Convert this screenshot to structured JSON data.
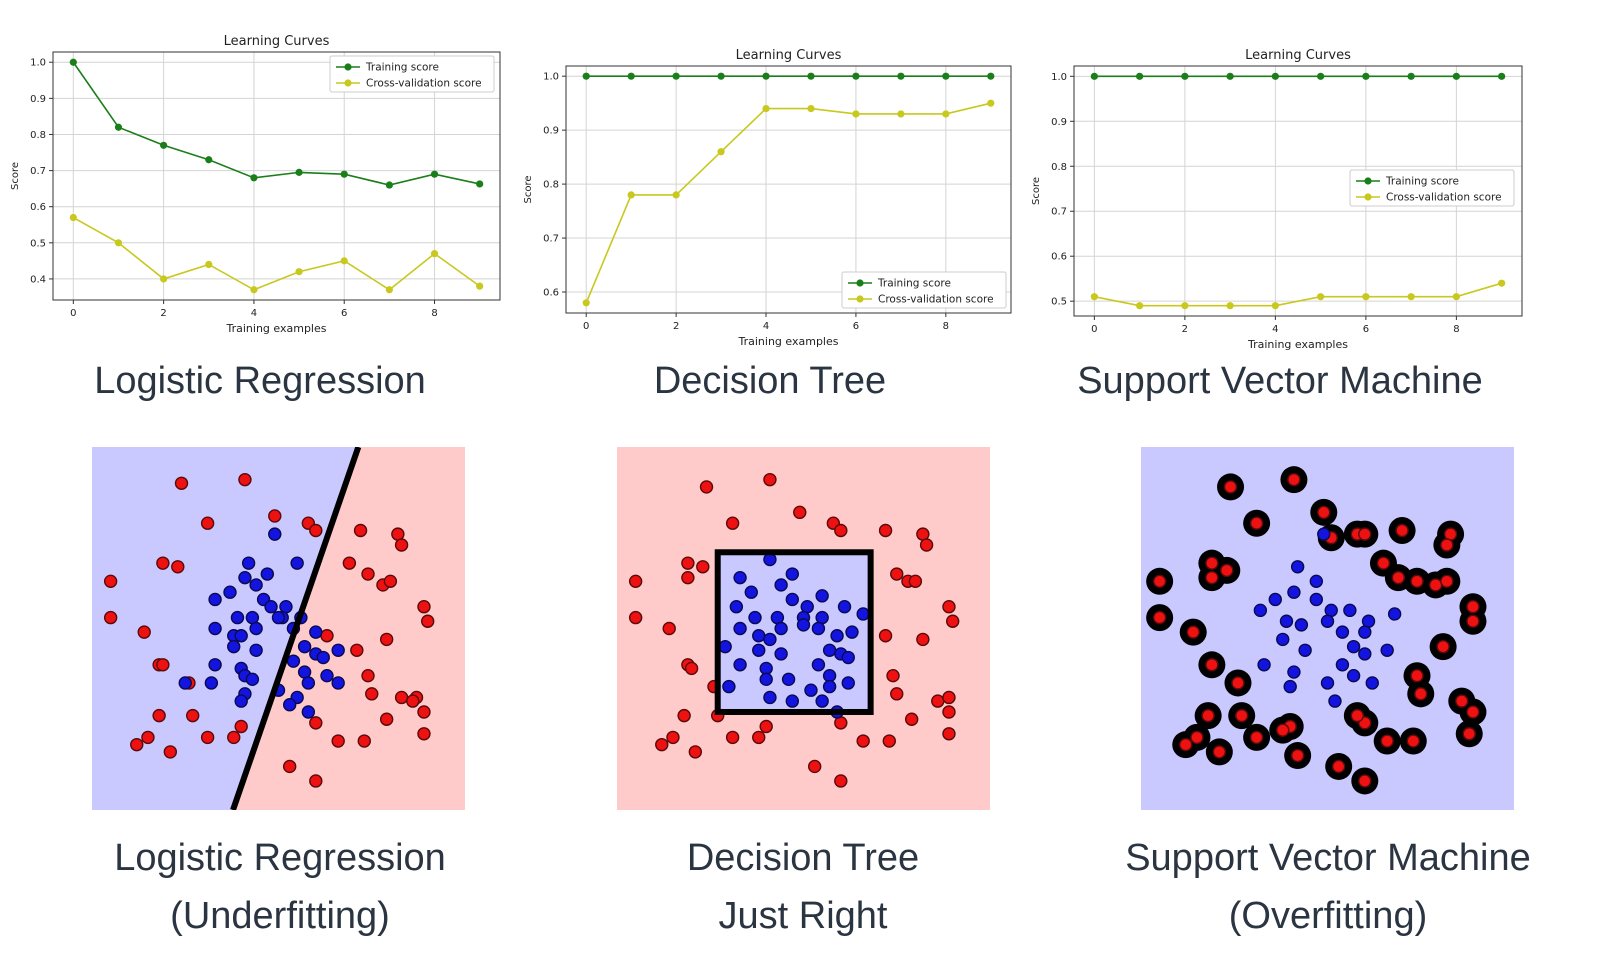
{
  "chart_data": [
    {
      "type": "line",
      "title": "Learning Curves",
      "xlabel": "Training examples",
      "ylabel": "Score",
      "x": [
        0,
        1,
        2,
        3,
        4,
        5,
        6,
        7,
        8,
        9
      ],
      "xticks": [
        "0",
        "2",
        "4",
        "6",
        "8"
      ],
      "yticks": [
        "0.4",
        "0.5",
        "0.6",
        "0.7",
        "0.8",
        "0.9",
        "1.0"
      ],
      "ylim": [
        0.37,
        1.0
      ],
      "grid": true,
      "legend": "top-right",
      "series": [
        {
          "name": "Training score",
          "color": "#1a7f1a",
          "values": [
            1.0,
            0.82,
            0.77,
            0.73,
            0.68,
            0.695,
            0.69,
            0.66,
            0.69,
            0.663
          ]
        },
        {
          "name": "Cross-validation score",
          "color": "#c8c81e",
          "values": [
            0.57,
            0.5,
            0.4,
            0.44,
            0.37,
            0.42,
            0.45,
            0.37,
            0.47,
            0.38
          ]
        }
      ]
    },
    {
      "type": "line",
      "title": "Learning Curves",
      "xlabel": "Training examples",
      "ylabel": "Score",
      "x": [
        0,
        1,
        2,
        3,
        4,
        5,
        6,
        7,
        8,
        9
      ],
      "xticks": [
        "0",
        "2",
        "4",
        "6",
        "8"
      ],
      "yticks": [
        "0.6",
        "0.7",
        "0.8",
        "0.9",
        "1.0"
      ],
      "ylim": [
        0.58,
        1.0
      ],
      "grid": true,
      "legend": "bottom-right",
      "series": [
        {
          "name": "Training score",
          "color": "#1a7f1a",
          "values": [
            1,
            1,
            1,
            1,
            1,
            1,
            1,
            1,
            1,
            1
          ]
        },
        {
          "name": "Cross-validation score",
          "color": "#c8c81e",
          "values": [
            0.58,
            0.78,
            0.78,
            0.86,
            0.94,
            0.94,
            0.93,
            0.93,
            0.93,
            0.95
          ]
        }
      ]
    },
    {
      "type": "line",
      "title": "Learning Curves",
      "xlabel": "Training examples",
      "ylabel": "Score",
      "x": [
        0,
        1,
        2,
        3,
        4,
        5,
        6,
        7,
        8,
        9
      ],
      "xticks": [
        "0",
        "2",
        "4",
        "6",
        "8"
      ],
      "yticks": [
        "0.5",
        "0.6",
        "0.7",
        "0.8",
        "0.9",
        "1.0"
      ],
      "ylim": [
        0.49,
        1.0
      ],
      "grid": true,
      "legend": "center-right",
      "series": [
        {
          "name": "Training score",
          "color": "#1a7f1a",
          "values": [
            1,
            1,
            1,
            1,
            1,
            1,
            1,
            1,
            1,
            1
          ]
        },
        {
          "name": "Cross-validation score",
          "color": "#c8c81e",
          "values": [
            0.51,
            0.49,
            0.49,
            0.49,
            0.49,
            0.51,
            0.51,
            0.51,
            0.51,
            0.54
          ]
        }
      ]
    },
    {
      "type": "scatter",
      "boundary": "linear",
      "boundary_line": [
        [
          0.378,
          0.0
        ],
        [
          0.714,
          1.0
        ]
      ],
      "region_colors": {
        "left": "#c9c9ff",
        "right": "#ffcaca"
      },
      "points_red": [
        [
          0.24,
          0.1
        ],
        [
          0.41,
          0.09
        ],
        [
          0.31,
          0.21
        ],
        [
          0.49,
          0.19
        ],
        [
          0.58,
          0.21
        ],
        [
          0.6,
          0.23
        ],
        [
          0.72,
          0.23
        ],
        [
          0.82,
          0.24
        ],
        [
          0.83,
          0.27
        ],
        [
          0.19,
          0.32
        ],
        [
          0.23,
          0.33
        ],
        [
          0.05,
          0.37
        ],
        [
          0.69,
          0.32
        ],
        [
          0.74,
          0.35
        ],
        [
          0.78,
          0.38
        ],
        [
          0.8,
          0.37
        ],
        [
          0.05,
          0.47
        ],
        [
          0.14,
          0.51
        ],
        [
          0.89,
          0.44
        ],
        [
          0.9,
          0.48
        ],
        [
          0.63,
          0.52
        ],
        [
          0.71,
          0.56
        ],
        [
          0.79,
          0.53
        ],
        [
          0.18,
          0.6
        ],
        [
          0.19,
          0.6
        ],
        [
          0.26,
          0.65
        ],
        [
          0.74,
          0.63
        ],
        [
          0.75,
          0.68
        ],
        [
          0.83,
          0.69
        ],
        [
          0.87,
          0.69
        ],
        [
          0.86,
          0.7
        ],
        [
          0.89,
          0.73
        ],
        [
          0.18,
          0.74
        ],
        [
          0.27,
          0.74
        ],
        [
          0.6,
          0.76
        ],
        [
          0.79,
          0.75
        ],
        [
          0.4,
          0.77
        ],
        [
          0.15,
          0.8
        ],
        [
          0.31,
          0.8
        ],
        [
          0.38,
          0.8
        ],
        [
          0.66,
          0.81
        ],
        [
          0.73,
          0.81
        ],
        [
          0.89,
          0.79
        ],
        [
          0.21,
          0.84
        ],
        [
          0.53,
          0.88
        ],
        [
          0.6,
          0.92
        ],
        [
          0.12,
          0.82
        ]
      ],
      "points_blue": [
        [
          0.49,
          0.24
        ],
        [
          0.42,
          0.32
        ],
        [
          0.55,
          0.32
        ],
        [
          0.47,
          0.35
        ],
        [
          0.41,
          0.36
        ],
        [
          0.37,
          0.4
        ],
        [
          0.44,
          0.38
        ],
        [
          0.33,
          0.42
        ],
        [
          0.46,
          0.42
        ],
        [
          0.48,
          0.44
        ],
        [
          0.52,
          0.44
        ],
        [
          0.39,
          0.47
        ],
        [
          0.43,
          0.47
        ],
        [
          0.51,
          0.47
        ],
        [
          0.56,
          0.47
        ],
        [
          0.33,
          0.5
        ],
        [
          0.38,
          0.52
        ],
        [
          0.4,
          0.52
        ],
        [
          0.44,
          0.5
        ],
        [
          0.5,
          0.47
        ],
        [
          0.54,
          0.5
        ],
        [
          0.6,
          0.51
        ],
        [
          0.38,
          0.55
        ],
        [
          0.44,
          0.56
        ],
        [
          0.57,
          0.55
        ],
        [
          0.6,
          0.57
        ],
        [
          0.33,
          0.6
        ],
        [
          0.4,
          0.61
        ],
        [
          0.54,
          0.59
        ],
        [
          0.57,
          0.62
        ],
        [
          0.62,
          0.58
        ],
        [
          0.66,
          0.56
        ],
        [
          0.25,
          0.65
        ],
        [
          0.32,
          0.65
        ],
        [
          0.41,
          0.63
        ],
        [
          0.43,
          0.64
        ],
        [
          0.58,
          0.65
        ],
        [
          0.63,
          0.63
        ],
        [
          0.66,
          0.65
        ],
        [
          0.5,
          0.67
        ],
        [
          0.41,
          0.68
        ],
        [
          0.4,
          0.7
        ],
        [
          0.55,
          0.69
        ],
        [
          0.58,
          0.73
        ],
        [
          0.53,
          0.71
        ]
      ]
    },
    {
      "type": "scatter",
      "boundary": "rectangle",
      "boundary_rect": [
        0.27,
        0.29,
        0.68,
        0.73
      ],
      "region_colors": {
        "inside": "#c9c9ff",
        "outside": "#ffcaca"
      },
      "points_red": [
        [
          0.24,
          0.11
        ],
        [
          0.41,
          0.09
        ],
        [
          0.31,
          0.21
        ],
        [
          0.49,
          0.18
        ],
        [
          0.58,
          0.21
        ],
        [
          0.6,
          0.23
        ],
        [
          0.72,
          0.23
        ],
        [
          0.82,
          0.24
        ],
        [
          0.83,
          0.27
        ],
        [
          0.19,
          0.32
        ],
        [
          0.23,
          0.33
        ],
        [
          0.05,
          0.37
        ],
        [
          0.19,
          0.36
        ],
        [
          0.75,
          0.35
        ],
        [
          0.78,
          0.37
        ],
        [
          0.8,
          0.37
        ],
        [
          0.05,
          0.47
        ],
        [
          0.14,
          0.5
        ],
        [
          0.89,
          0.44
        ],
        [
          0.9,
          0.48
        ],
        [
          0.72,
          0.52
        ],
        [
          0.82,
          0.53
        ],
        [
          0.19,
          0.6
        ],
        [
          0.2,
          0.61
        ],
        [
          0.26,
          0.66
        ],
        [
          0.74,
          0.63
        ],
        [
          0.75,
          0.68
        ],
        [
          0.86,
          0.7
        ],
        [
          0.89,
          0.69
        ],
        [
          0.89,
          0.73
        ],
        [
          0.18,
          0.74
        ],
        [
          0.27,
          0.74
        ],
        [
          0.6,
          0.76
        ],
        [
          0.79,
          0.75
        ],
        [
          0.4,
          0.77
        ],
        [
          0.15,
          0.8
        ],
        [
          0.31,
          0.8
        ],
        [
          0.38,
          0.8
        ],
        [
          0.66,
          0.81
        ],
        [
          0.73,
          0.81
        ],
        [
          0.89,
          0.79
        ],
        [
          0.21,
          0.84
        ],
        [
          0.53,
          0.88
        ],
        [
          0.6,
          0.92
        ],
        [
          0.12,
          0.82
        ]
      ],
      "points_blue": [
        [
          0.41,
          0.31
        ],
        [
          0.33,
          0.36
        ],
        [
          0.36,
          0.4
        ],
        [
          0.44,
          0.38
        ],
        [
          0.47,
          0.35
        ],
        [
          0.47,
          0.42
        ],
        [
          0.51,
          0.44
        ],
        [
          0.55,
          0.41
        ],
        [
          0.32,
          0.44
        ],
        [
          0.37,
          0.47
        ],
        [
          0.43,
          0.47
        ],
        [
          0.5,
          0.47
        ],
        [
          0.55,
          0.47
        ],
        [
          0.61,
          0.44
        ],
        [
          0.33,
          0.5
        ],
        [
          0.38,
          0.52
        ],
        [
          0.41,
          0.53
        ],
        [
          0.44,
          0.5
        ],
        [
          0.5,
          0.49
        ],
        [
          0.54,
          0.5
        ],
        [
          0.59,
          0.52
        ],
        [
          0.63,
          0.51
        ],
        [
          0.38,
          0.56
        ],
        [
          0.44,
          0.57
        ],
        [
          0.57,
          0.56
        ],
        [
          0.6,
          0.57
        ],
        [
          0.33,
          0.6
        ],
        [
          0.4,
          0.61
        ],
        [
          0.54,
          0.6
        ],
        [
          0.57,
          0.63
        ],
        [
          0.62,
          0.58
        ],
        [
          0.3,
          0.66
        ],
        [
          0.4,
          0.64
        ],
        [
          0.46,
          0.64
        ],
        [
          0.52,
          0.67
        ],
        [
          0.57,
          0.66
        ],
        [
          0.62,
          0.65
        ],
        [
          0.41,
          0.69
        ],
        [
          0.47,
          0.7
        ],
        [
          0.55,
          0.7
        ],
        [
          0.59,
          0.73
        ],
        [
          0.66,
          0.46
        ],
        [
          0.29,
          0.55
        ]
      ]
    },
    {
      "type": "scatter",
      "boundary": "overfit",
      "region_colors": {
        "background": "#c9c9ff",
        "halo": "#000000"
      },
      "points_red": [
        [
          0.24,
          0.11
        ],
        [
          0.41,
          0.09
        ],
        [
          0.31,
          0.21
        ],
        [
          0.49,
          0.18
        ],
        [
          0.51,
          0.25
        ],
        [
          0.58,
          0.24
        ],
        [
          0.6,
          0.24
        ],
        [
          0.65,
          0.32
        ],
        [
          0.7,
          0.23
        ],
        [
          0.69,
          0.36
        ],
        [
          0.74,
          0.37
        ],
        [
          0.79,
          0.38
        ],
        [
          0.82,
          0.37
        ],
        [
          0.83,
          0.24
        ],
        [
          0.82,
          0.27
        ],
        [
          0.05,
          0.37
        ],
        [
          0.19,
          0.32
        ],
        [
          0.23,
          0.34
        ],
        [
          0.19,
          0.36
        ],
        [
          0.05,
          0.47
        ],
        [
          0.14,
          0.51
        ],
        [
          0.89,
          0.44
        ],
        [
          0.89,
          0.48
        ],
        [
          0.81,
          0.55
        ],
        [
          0.19,
          0.6
        ],
        [
          0.26,
          0.65
        ],
        [
          0.74,
          0.63
        ],
        [
          0.75,
          0.68
        ],
        [
          0.86,
          0.7
        ],
        [
          0.89,
          0.73
        ],
        [
          0.88,
          0.79
        ],
        [
          0.18,
          0.74
        ],
        [
          0.27,
          0.74
        ],
        [
          0.6,
          0.76
        ],
        [
          0.58,
          0.74
        ],
        [
          0.4,
          0.77
        ],
        [
          0.15,
          0.8
        ],
        [
          0.31,
          0.8
        ],
        [
          0.38,
          0.78
        ],
        [
          0.66,
          0.81
        ],
        [
          0.73,
          0.81
        ],
        [
          0.21,
          0.84
        ],
        [
          0.53,
          0.88
        ],
        [
          0.6,
          0.92
        ],
        [
          0.12,
          0.82
        ],
        [
          0.42,
          0.85
        ]
      ],
      "points_blue": [
        [
          0.49,
          0.24
        ],
        [
          0.42,
          0.33
        ],
        [
          0.47,
          0.37
        ],
        [
          0.41,
          0.4
        ],
        [
          0.36,
          0.42
        ],
        [
          0.32,
          0.45
        ],
        [
          0.47,
          0.42
        ],
        [
          0.51,
          0.45
        ],
        [
          0.56,
          0.45
        ],
        [
          0.61,
          0.48
        ],
        [
          0.39,
          0.48
        ],
        [
          0.43,
          0.49
        ],
        [
          0.5,
          0.48
        ],
        [
          0.54,
          0.51
        ],
        [
          0.6,
          0.51
        ],
        [
          0.68,
          0.46
        ],
        [
          0.38,
          0.53
        ],
        [
          0.44,
          0.56
        ],
        [
          0.57,
          0.55
        ],
        [
          0.6,
          0.57
        ],
        [
          0.33,
          0.6
        ],
        [
          0.41,
          0.62
        ],
        [
          0.54,
          0.6
        ],
        [
          0.57,
          0.63
        ],
        [
          0.66,
          0.56
        ],
        [
          0.4,
          0.66
        ],
        [
          0.5,
          0.65
        ],
        [
          0.62,
          0.65
        ],
        [
          0.52,
          0.7
        ]
      ]
    }
  ],
  "captions": {
    "row1": [
      "Logistic Regression",
      "Decision Tree",
      "Support Vector Machine"
    ],
    "row2": [
      [
        "Logistic Regression",
        "(Underfitting)"
      ],
      [
        "Decision Tree",
        "Just Right"
      ],
      [
        "Support Vector Machine",
        "(Overfitting)"
      ]
    ]
  }
}
